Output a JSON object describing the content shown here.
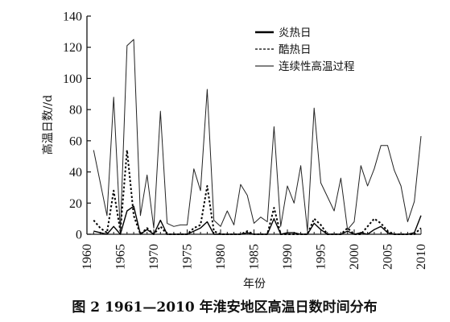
{
  "chart_data": {
    "type": "line",
    "xlabel": "年份",
    "ylabel": "高温日数//d",
    "xlim": [
      1960,
      2010
    ],
    "ylim": [
      0,
      140
    ],
    "xticks": [
      "1960",
      "1965",
      "1970",
      "1975",
      "1980",
      "1985",
      "1990",
      "1995",
      "2000",
      "2005",
      "2010"
    ],
    "yticks": [
      "0",
      "20",
      "40",
      "60",
      "80",
      "100",
      "120",
      "140"
    ],
    "grid": false,
    "legend_position": "top-right",
    "x": [
      1961,
      1962,
      1963,
      1964,
      1965,
      1966,
      1967,
      1968,
      1969,
      1970,
      1971,
      1972,
      1973,
      1974,
      1975,
      1976,
      1977,
      1978,
      1979,
      1980,
      1981,
      1982,
      1983,
      1984,
      1985,
      1986,
      1987,
      1988,
      1989,
      1990,
      1991,
      1992,
      1993,
      1994,
      1995,
      1996,
      1997,
      1998,
      1999,
      2000,
      2001,
      2002,
      2003,
      2004,
      2005,
      2006,
      2007,
      2008,
      2009,
      2010
    ],
    "series": [
      {
        "name": "炎热日",
        "style": "solid-thick",
        "values": [
          2,
          1,
          0,
          5,
          0,
          15,
          18,
          0,
          3,
          0,
          9,
          0,
          0,
          0,
          0,
          2,
          4,
          8,
          0,
          0,
          0,
          0,
          0,
          1,
          0,
          0,
          0,
          10,
          0,
          1,
          1,
          0,
          0,
          7,
          3,
          0,
          0,
          0,
          2,
          0,
          1,
          0,
          3,
          5,
          1,
          0,
          0,
          0,
          1,
          12
        ]
      },
      {
        "name": "酷热日",
        "style": "dashed",
        "values": [
          9,
          4,
          1,
          28,
          2,
          54,
          12,
          0,
          4,
          0,
          5,
          0,
          0,
          0,
          0,
          4,
          6,
          31,
          2,
          0,
          0,
          0,
          0,
          2,
          0,
          0,
          0,
          17,
          0,
          0,
          0,
          0,
          0,
          10,
          6,
          0,
          0,
          0,
          4,
          0,
          0,
          5,
          10,
          7,
          2,
          0,
          0,
          0,
          0,
          4
        ]
      },
      {
        "name": "连续性高温过程",
        "style": "solid-thin",
        "values": [
          54,
          33,
          12,
          88,
          2,
          121,
          125,
          12,
          38,
          4,
          79,
          7,
          5,
          6,
          6,
          42,
          28,
          93,
          9,
          5,
          15,
          6,
          32,
          25,
          7,
          11,
          8,
          69,
          5,
          31,
          20,
          44,
          2,
          81,
          33,
          24,
          15,
          36,
          3,
          8,
          44,
          31,
          42,
          57,
          57,
          41,
          31,
          8,
          21,
          63
        ]
      }
    ],
    "caption": "图 2   1961—2010 年淮安地区高温日数时间分布"
  }
}
